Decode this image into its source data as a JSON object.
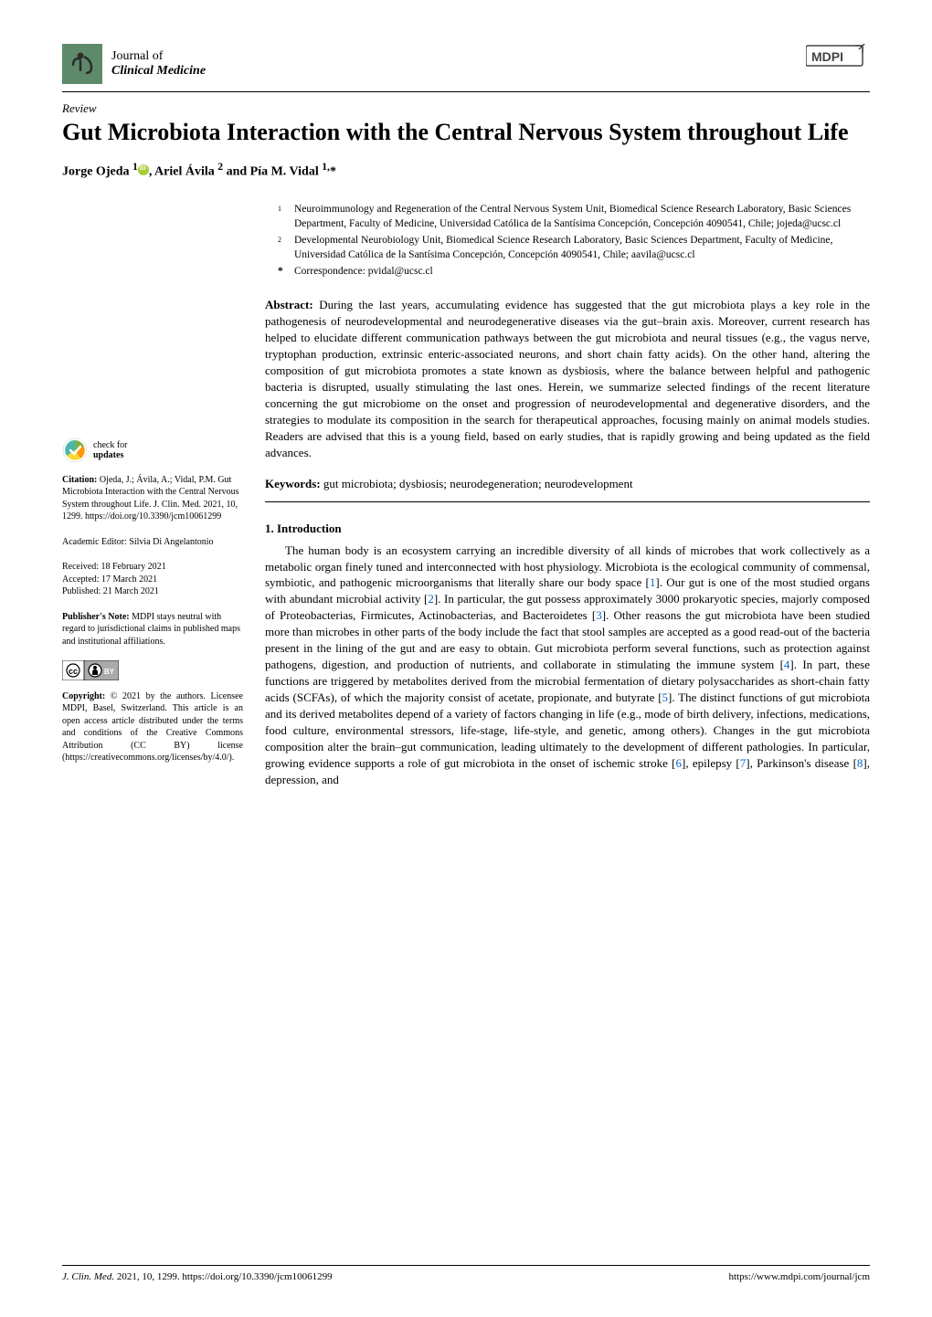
{
  "journal": {
    "name_line1": "Journal of",
    "name_line2": "Clinical Medicine",
    "icon_colors": {
      "bg": "#5d8a6a",
      "accent": "#333333"
    }
  },
  "publisher": {
    "name": "MDPI",
    "color": "#444444"
  },
  "article": {
    "type": "Review",
    "title": "Gut Microbiota Interaction with the Central Nervous System throughout Life",
    "authors_html": "Jorge Ojeda ¹ , Ariel Ávila ² and Pía M. Vidal ¹,*"
  },
  "affiliations": [
    {
      "num": "1",
      "text": "Neuroimmunology and Regeneration of the Central Nervous System Unit, Biomedical Science Research Laboratory, Basic Sciences Department, Faculty of Medicine, Universidad Católica de la Santísima Concepción, Concepción 4090541, Chile; jojeda@ucsc.cl"
    },
    {
      "num": "2",
      "text": "Developmental Neurobiology Unit, Biomedical Science Research Laboratory, Basic Sciences Department, Faculty of Medicine, Universidad Católica de la Santísima Concepción, Concepción 4090541, Chile; aavila@ucsc.cl"
    }
  ],
  "correspondence": {
    "star": "*",
    "text": "Correspondence: pvidal@ucsc.cl"
  },
  "abstract": {
    "label": "Abstract:",
    "text": " During the last years, accumulating evidence has suggested that the gut microbiota plays a key role in the pathogenesis of neurodevelopmental and neurodegenerative diseases via the gut–brain axis. Moreover, current research has helped to elucidate different communication pathways between the gut microbiota and neural tissues (e.g., the vagus nerve, tryptophan production, extrinsic enteric-associated neurons, and short chain fatty acids). On the other hand, altering the composition of gut microbiota promotes a state known as dysbiosis, where the balance between helpful and pathogenic bacteria is disrupted, usually stimulating the last ones. Herein, we summarize selected findings of the recent literature concerning the gut microbiome on the onset and progression of neurodevelopmental and degenerative disorders, and the strategies to modulate its composition in the search for therapeutical approaches, focusing mainly on animal models studies. Readers are advised that this is a young field, based on early studies, that is rapidly growing and being updated as the field advances."
  },
  "keywords": {
    "label": "Keywords:",
    "text": " gut microbiota; dysbiosis; neurodegeneration; neurodevelopment"
  },
  "section1": {
    "heading": "1. Introduction",
    "body": "The human body is an ecosystem carrying an incredible diversity of all kinds of microbes that work collectively as a metabolic organ finely tuned and interconnected with host physiology. Microbiota is the ecological community of commensal, symbiotic, and pathogenic microorganisms that literally share our body space [1]. Our gut is one of the most studied organs with abundant microbial activity [2]. In particular, the gut possess approximately 3000 prokaryotic species, majorly composed of Proteobacterias, Firmicutes, Actinobacterias, and Bacteroidetes [3]. Other reasons the gut microbiota have been studied more than microbes in other parts of the body include the fact that stool samples are accepted as a good read-out of the bacteria present in the lining of the gut and are easy to obtain. Gut microbiota perform several functions, such as protection against pathogens, digestion, and production of nutrients, and collaborate in stimulating the immune system [4]. In part, these functions are triggered by metabolites derived from the microbial fermentation of dietary polysaccharides as short-chain fatty acids (SCFAs), of which the majority consist of acetate, propionate, and butyrate [5]. The distinct functions of gut microbiota and its derived metabolites depend of a variety of factors changing in life (e.g., mode of birth delivery, infections, medications, food culture, environmental stressors, life-stage, life-style, and genetic, among others). Changes in the gut microbiota composition alter the brain–gut communication, leading ultimately to the development of different pathologies. In particular, growing evidence supports a role of gut microbiota in the onset of ischemic stroke [6], epilepsy [7], Parkinson's disease [8], depression, and"
  },
  "sidebar": {
    "check_updates": {
      "line1": "check for",
      "line2": "updates"
    },
    "citation": {
      "label": "Citation:",
      "text": " Ojeda, J.; Ávila, A.; Vidal, P.M. Gut Microbiota Interaction with the Central Nervous System throughout Life. J. Clin. Med. 2021, 10, 1299. https://doi.org/10.3390/jcm10061299"
    },
    "editor": {
      "label": "Academic Editor:",
      "text": " Silvia Di Angelantonio"
    },
    "dates": {
      "received": "Received: 18 February 2021",
      "accepted": "Accepted: 17 March 2021",
      "published": "Published: 21 March 2021"
    },
    "publishers_note": {
      "label": "Publisher's Note:",
      "text": " MDPI stays neutral with regard to jurisdictional claims in published maps and institutional affiliations."
    },
    "copyright": {
      "label": "Copyright:",
      "text": " © 2021 by the authors. Licensee MDPI, Basel, Switzerland. This article is an open access article distributed under the terms and conditions of the Creative Commons Attribution (CC BY) license (https://creativecommons.org/licenses/by/4.0/)."
    }
  },
  "footer": {
    "left_italic": "J. Clin. Med.",
    "left_rest": " 2021, 10, 1299. https://doi.org/10.3390/jcm10061299",
    "right": "https://www.mdpi.com/journal/jcm"
  },
  "colors": {
    "text": "#000000",
    "link": "#0066cc",
    "orcid": "#a6ce39",
    "check_green": "#7cb342",
    "check_orange": "#ff9800",
    "check_yellow": "#fdd835",
    "cc_border": "#000000",
    "cc_bg": "#ffffff"
  }
}
